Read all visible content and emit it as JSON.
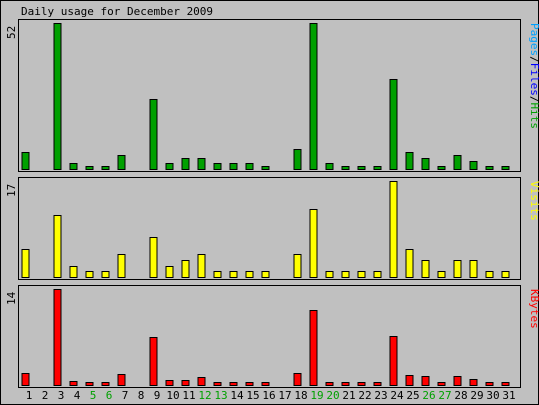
{
  "title": "Daily usage for December 2009",
  "colors": {
    "background": "#c0c0c0",
    "hits": "#00a000",
    "pages": "#00a0ff",
    "files": "#0000ff",
    "visits": "#ffff00",
    "kbytes": "#ff0000",
    "weekend_label": "#00a000"
  },
  "chart_data": [
    {
      "type": "bar",
      "panel": "hits",
      "ymax_label": "52",
      "ylim": [
        0,
        52
      ],
      "legend": [
        {
          "text": "Pages",
          "color": "#00a0ff"
        },
        {
          "text": "/",
          "color": "#000000"
        },
        {
          "text": "Files",
          "color": "#0000ff"
        },
        {
          "text": "/",
          "color": "#000000"
        },
        {
          "text": "Hits",
          "color": "#00a000"
        }
      ],
      "categories": [
        "1",
        "2",
        "3",
        "4",
        "5",
        "6",
        "7",
        "8",
        "9",
        "10",
        "11",
        "12",
        "13",
        "14",
        "15",
        "16",
        "17",
        "18",
        "19",
        "20",
        "21",
        "22",
        "23",
        "24",
        "25",
        "26",
        "27",
        "28",
        "29",
        "30",
        "31"
      ],
      "values": [
        6,
        0,
        52,
        2,
        1,
        1,
        5,
        0,
        25,
        2,
        4,
        4,
        2,
        2,
        2,
        1,
        0,
        7,
        52,
        2,
        1,
        1,
        1,
        32,
        6,
        4,
        1,
        5,
        3,
        1,
        1
      ],
      "color": "#00a000"
    },
    {
      "type": "bar",
      "panel": "visits",
      "ymax_label": "17",
      "ylim": [
        0,
        17
      ],
      "legend": [
        {
          "text": "Visits",
          "color": "#ffff00"
        }
      ],
      "categories": [
        "1",
        "2",
        "3",
        "4",
        "5",
        "6",
        "7",
        "8",
        "9",
        "10",
        "11",
        "12",
        "13",
        "14",
        "15",
        "16",
        "17",
        "18",
        "19",
        "20",
        "21",
        "22",
        "23",
        "24",
        "25",
        "26",
        "27",
        "28",
        "29",
        "30",
        "31"
      ],
      "values": [
        5,
        0,
        11,
        2,
        1,
        1,
        4,
        0,
        7,
        2,
        3,
        4,
        1,
        1,
        1,
        1,
        0,
        4,
        12,
        1,
        1,
        1,
        1,
        17,
        5,
        3,
        1,
        3,
        3,
        1,
        1
      ],
      "color": "#ffff00"
    },
    {
      "type": "bar",
      "panel": "kbytes",
      "ymax_label": "14",
      "ylim": [
        0,
        14
      ],
      "legend": [
        {
          "text": "KBytes",
          "color": "#ff0000"
        }
      ],
      "categories": [
        "1",
        "2",
        "3",
        "4",
        "5",
        "6",
        "7",
        "8",
        "9",
        "10",
        "11",
        "12",
        "13",
        "14",
        "15",
        "16",
        "17",
        "18",
        "19",
        "20",
        "21",
        "22",
        "23",
        "24",
        "25",
        "26",
        "27",
        "28",
        "29",
        "30",
        "31"
      ],
      "values": [
        1.8,
        0,
        14,
        0.6,
        0.5,
        0.4,
        1.6,
        0,
        7,
        0.7,
        0.8,
        1.1,
        0.5,
        0.5,
        0.5,
        0.4,
        0,
        1.7,
        11,
        0.5,
        0.4,
        0.4,
        0.4,
        7.1,
        1.5,
        1.3,
        0.4,
        1.3,
        0.9,
        0.4,
        0.4
      ],
      "color": "#ff0000"
    }
  ],
  "x_labels": [
    {
      "text": "1",
      "weekend": false
    },
    {
      "text": "2",
      "weekend": false
    },
    {
      "text": "3",
      "weekend": false
    },
    {
      "text": "4",
      "weekend": false
    },
    {
      "text": "5",
      "weekend": true
    },
    {
      "text": "6",
      "weekend": true
    },
    {
      "text": "7",
      "weekend": false
    },
    {
      "text": "8",
      "weekend": false
    },
    {
      "text": "9",
      "weekend": false
    },
    {
      "text": "10",
      "weekend": false
    },
    {
      "text": "11",
      "weekend": false
    },
    {
      "text": "12",
      "weekend": true
    },
    {
      "text": "13",
      "weekend": true
    },
    {
      "text": "14",
      "weekend": false
    },
    {
      "text": "15",
      "weekend": false
    },
    {
      "text": "16",
      "weekend": false
    },
    {
      "text": "17",
      "weekend": false
    },
    {
      "text": "18",
      "weekend": false
    },
    {
      "text": "19",
      "weekend": true
    },
    {
      "text": "20",
      "weekend": true
    },
    {
      "text": "21",
      "weekend": false
    },
    {
      "text": "22",
      "weekend": false
    },
    {
      "text": "23",
      "weekend": false
    },
    {
      "text": "24",
      "weekend": false
    },
    {
      "text": "25",
      "weekend": false
    },
    {
      "text": "26",
      "weekend": true
    },
    {
      "text": "27",
      "weekend": true
    },
    {
      "text": "28",
      "weekend": false
    },
    {
      "text": "29",
      "weekend": false
    },
    {
      "text": "30",
      "weekend": false
    },
    {
      "text": "31",
      "weekend": false
    }
  ]
}
